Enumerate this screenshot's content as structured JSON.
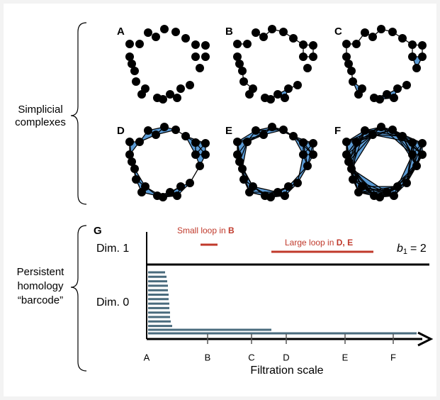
{
  "panels": {
    "labels": [
      "A",
      "B",
      "C",
      "D",
      "E",
      "F"
    ]
  },
  "left_labels": {
    "simplicial": [
      "Simplicial",
      "complexes"
    ],
    "barcode": [
      "Persistent",
      "homology",
      "“barcode”"
    ]
  },
  "barcode": {
    "label": "G",
    "dim1": "Dim. 1",
    "dim0": "Dim. 0",
    "small_loop": {
      "text": "Small loop in ",
      "bold": "B"
    },
    "large_loop": {
      "text": "Large loop in ",
      "bold": "D, E"
    },
    "betti": {
      "symbol": "b",
      "subscript": "1",
      "rest": "= 2"
    },
    "axis_ticks": [
      "A",
      "B",
      "C",
      "D",
      "E",
      "F"
    ],
    "axis_label": "Filtration scale"
  }
}
